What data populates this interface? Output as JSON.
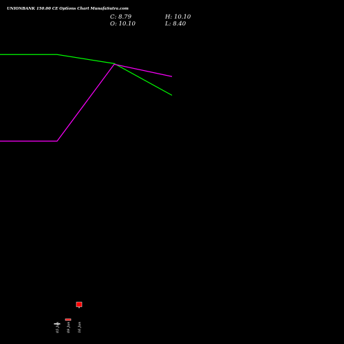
{
  "header": {
    "title": "UNIONBANK 150.00 CE Options Chart MunafaSutra.com",
    "close": "C: 8.79",
    "open": "O: 10.10",
    "high": "H: 10.10",
    "low": "L: 8.40"
  },
  "chart_data": {
    "type": "candlestick",
    "title": "UNIONBANK 150.00 CE Options Chart MunafaSutra.com",
    "x_tick_labels": [
      "05 Jun",
      "09 Jun",
      "16 Jun"
    ],
    "candles": [
      {
        "date": "05 Jun",
        "open": 4.2,
        "high": 4.2,
        "low": 4.2,
        "close": 4.2,
        "color": "#ffffff"
      },
      {
        "date": "09 Jun",
        "open": 5.45,
        "high": 5.45,
        "low": 5.0,
        "close": 5.0,
        "color": "#ff0000"
      },
      {
        "date": "16 Jun",
        "open": 10.1,
        "high": 10.1,
        "low": 8.4,
        "close": 8.79,
        "color": "#ff0000"
      }
    ],
    "overlay_lines": [
      {
        "color": "#00ff00",
        "values": [
          [
            0,
            78.7
          ],
          [
            83,
            78.7
          ],
          [
            166,
            76.2
          ],
          [
            250,
            67.4
          ]
        ]
      },
      {
        "color": "#ff00ff",
        "values": [
          [
            0,
            54.7
          ],
          [
            83,
            54.7
          ],
          [
            166,
            76.0
          ],
          [
            250,
            72.6
          ]
        ]
      }
    ],
    "y_range": [
      0,
      90
    ],
    "x_range": [
      0,
      500
    ],
    "grid": false,
    "legend": "none"
  }
}
